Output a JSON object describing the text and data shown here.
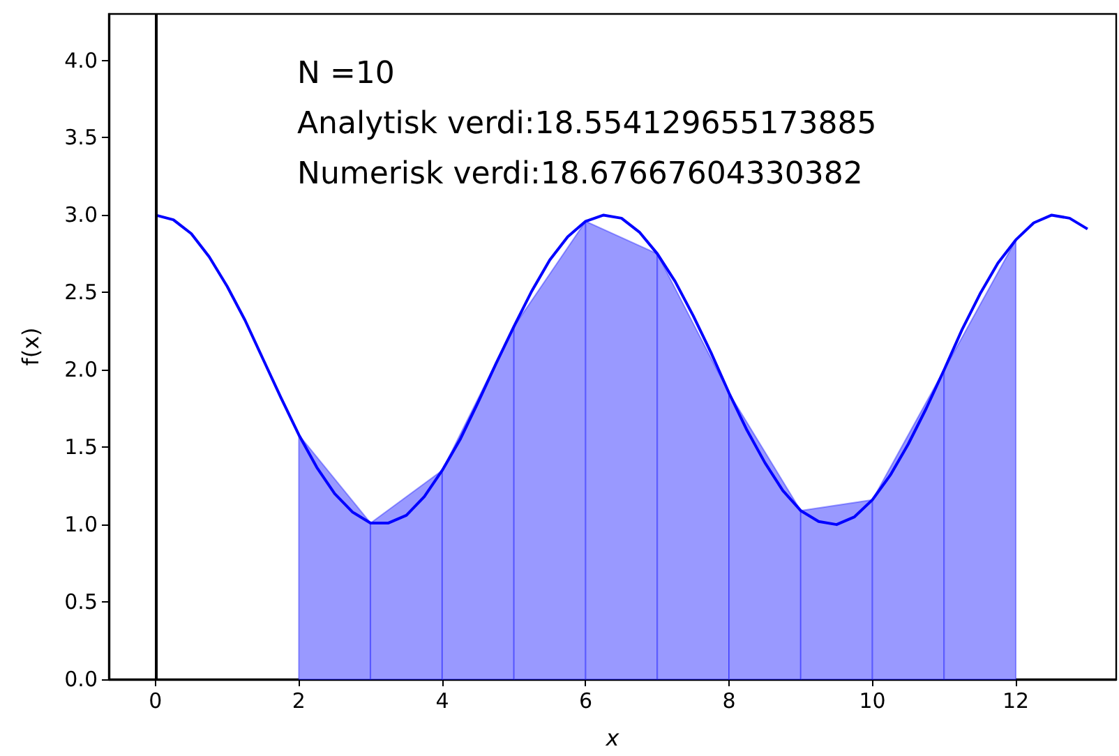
{
  "chart_data": {
    "type": "line",
    "xlabel": "x",
    "ylabel": "f(x)",
    "annotations": [
      "N =10",
      "Analytisk verdi:18.554129655173885",
      "Numerisk verdi:18.67667604330382"
    ],
    "series": [
      {
        "type": "area",
        "color": "#9999ff",
        "x": [
          2,
          3,
          4,
          5,
          6,
          7,
          8,
          9,
          10,
          11,
          12
        ],
        "values": [
          1.58,
          1.01,
          1.35,
          2.28,
          2.96,
          2.75,
          1.85,
          1.09,
          1.16,
          2.0,
          2.84
        ]
      },
      {
        "color": "#0000ff",
        "x": [
          0,
          0.25,
          0.5,
          0.75,
          1,
          1.25,
          1.5,
          1.75,
          2,
          2.25,
          2.5,
          2.75,
          3,
          3.25,
          3.5,
          3.75,
          4,
          4.25,
          4.5,
          4.75,
          5,
          5.25,
          5.5,
          5.75,
          6,
          6.25,
          6.5,
          6.75,
          7,
          7.25,
          7.5,
          7.75,
          8,
          8.25,
          8.5,
          8.75,
          9,
          9.25,
          9.5,
          9.75,
          10,
          10.25,
          10.5,
          10.75,
          11,
          11.25,
          11.5,
          11.75,
          12,
          12.25,
          12.5,
          12.75,
          13
        ],
        "values": [
          3.0,
          2.97,
          2.88,
          2.73,
          2.54,
          2.32,
          2.07,
          1.82,
          1.58,
          1.37,
          1.2,
          1.08,
          1.01,
          1.01,
          1.06,
          1.18,
          1.35,
          1.55,
          1.79,
          2.04,
          2.28,
          2.51,
          2.71,
          2.86,
          2.96,
          3.0,
          2.98,
          2.89,
          2.75,
          2.57,
          2.35,
          2.11,
          1.85,
          1.61,
          1.4,
          1.22,
          1.09,
          1.02,
          1.0,
          1.05,
          1.16,
          1.32,
          1.52,
          1.75,
          2.0,
          2.26,
          2.49,
          2.69,
          2.84,
          2.95,
          3.0,
          2.98,
          2.91
        ]
      }
    ],
    "ref_lines": [
      {
        "axis": "x",
        "value": 0,
        "color": "#000000"
      }
    ],
    "xlim": [
      -0.65,
      13.4
    ],
    "xticks": [
      0,
      2,
      4,
      6,
      8,
      10,
      12
    ],
    "ylim": [
      0,
      4.3
    ],
    "yticks": [
      {
        "value": 0,
        "label": "0.0"
      },
      {
        "value": 0.5,
        "label": "0.5"
      },
      {
        "value": 1,
        "label": "1.0"
      },
      {
        "value": 1.5,
        "label": "1.5"
      },
      {
        "value": 2,
        "label": "2.0"
      },
      {
        "value": 2.5,
        "label": "2.5"
      },
      {
        "value": 3,
        "label": "3.0"
      },
      {
        "value": 3.5,
        "label": "3.5"
      },
      {
        "value": 4,
        "label": "4.0"
      }
    ],
    "grid": false
  }
}
